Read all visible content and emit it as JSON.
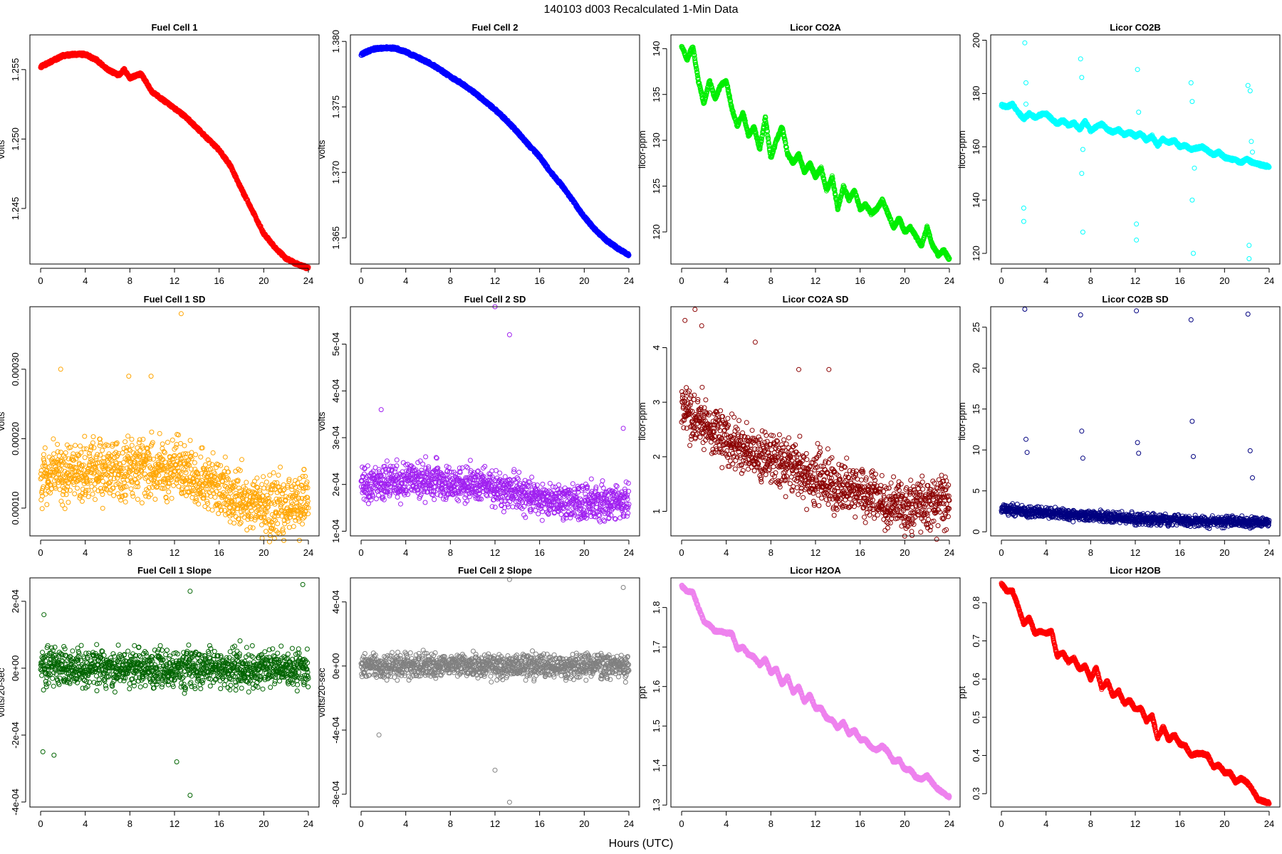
{
  "figure": {
    "title": "140103   d003   Recalculated 1-Min Data",
    "xlabel": "Hours (UTC)"
  },
  "chart_data": [
    {
      "type": "scatter",
      "title": "Fuel Cell 1",
      "ylabel": "volts",
      "color": "#ff0000",
      "xlim": [
        0,
        24
      ],
      "ylim": [
        1.241,
        1.2575
      ],
      "xticks": [
        0,
        4,
        8,
        12,
        16,
        20,
        24
      ],
      "xtick_labels": [
        "0",
        "4",
        "8",
        "12",
        "16",
        "20",
        "24"
      ],
      "yticks": [
        1.245,
        1.25,
        1.255
      ],
      "ytick_labels": [
        "1.245",
        "1.250",
        "1.255"
      ],
      "x": [
        0,
        1,
        2,
        3,
        4,
        5,
        6,
        7,
        7.5,
        8,
        9,
        10,
        11,
        12,
        13,
        14,
        15,
        16,
        17,
        18,
        19,
        20,
        21,
        22,
        23,
        24
      ],
      "y": [
        1.2552,
        1.2556,
        1.256,
        1.2561,
        1.2561,
        1.2557,
        1.255,
        1.2546,
        1.255,
        1.2544,
        1.2547,
        1.2534,
        1.2528,
        1.2522,
        1.2516,
        1.2508,
        1.25,
        1.2492,
        1.2481,
        1.2464,
        1.2448,
        1.2432,
        1.2422,
        1.2414,
        1.241,
        1.2407
      ]
    },
    {
      "type": "scatter",
      "title": "Fuel Cell 2",
      "ylabel": "volts",
      "color": "#0000ff",
      "xlim": [
        0,
        24
      ],
      "ylim": [
        1.363,
        1.3805
      ],
      "xticks": [
        0,
        4,
        8,
        12,
        16,
        20,
        24
      ],
      "xtick_labels": [
        "0",
        "4",
        "8",
        "12",
        "16",
        "20",
        "24"
      ],
      "yticks": [
        1.365,
        1.37,
        1.375,
        1.38
      ],
      "ytick_labels": [
        "1.365",
        "1.370",
        "1.375",
        "1.380"
      ],
      "x": [
        0,
        1,
        2,
        3,
        4,
        5,
        6,
        7,
        8,
        9,
        10,
        11,
        12,
        13,
        14,
        15,
        16,
        17,
        18,
        19,
        20,
        21,
        22,
        23,
        24
      ],
      "y": [
        1.379,
        1.3794,
        1.3795,
        1.3795,
        1.3792,
        1.3788,
        1.3784,
        1.3779,
        1.3773,
        1.3768,
        1.3762,
        1.3755,
        1.3748,
        1.374,
        1.3731,
        1.3721,
        1.3712,
        1.37,
        1.369,
        1.3678,
        1.3666,
        1.3656,
        1.3648,
        1.3642,
        1.3637
      ]
    },
    {
      "type": "scatter",
      "title": "Licor CO2A",
      "ylabel": "licor-ppm",
      "color": "#00ee00",
      "xlim": [
        0,
        24
      ],
      "ylim": [
        116.5,
        141.5
      ],
      "xticks": [
        0,
        4,
        8,
        12,
        16,
        20,
        24
      ],
      "xtick_labels": [
        "0",
        "4",
        "8",
        "12",
        "16",
        "20",
        "24"
      ],
      "yticks": [
        120,
        125,
        130,
        135,
        140
      ],
      "ytick_labels": [
        "120",
        "125",
        "130",
        "135",
        "140"
      ],
      "x": [
        0,
        0.5,
        1,
        1.5,
        2,
        2.5,
        3,
        3.5,
        4,
        4.5,
        5,
        5.5,
        6,
        6.5,
        7,
        7.5,
        8,
        8.5,
        9,
        9.5,
        10,
        10.5,
        11,
        11.5,
        12,
        12.5,
        13,
        13.5,
        14,
        14.5,
        15,
        15.5,
        16,
        16.5,
        17,
        17.5,
        18,
        18.5,
        19,
        19.5,
        20,
        20.5,
        21,
        21.5,
        22,
        22.5,
        23,
        23.5,
        24
      ],
      "y": [
        140.3,
        138.8,
        140.3,
        136.5,
        134.0,
        136.5,
        134.5,
        136.0,
        136.5,
        133.5,
        131.5,
        133.0,
        130.5,
        131.5,
        129.0,
        132.5,
        128.0,
        130.0,
        131.5,
        128.5,
        127.5,
        128.5,
        126.5,
        127.5,
        126.0,
        127.0,
        124.5,
        126.0,
        122.5,
        125.0,
        123.5,
        124.5,
        122.5,
        123.0,
        122.0,
        122.5,
        123.5,
        122.0,
        120.5,
        121.5,
        120.0,
        120.5,
        119.5,
        118.5,
        120.5,
        118.5,
        117.5,
        118.0,
        117.0
      ]
    },
    {
      "type": "scatter",
      "title": "Licor CO2B",
      "ylabel": "licor-ppm",
      "color": "#00ffff",
      "xlim": [
        0,
        24
      ],
      "ylim": [
        116,
        202
      ],
      "xticks": [
        0,
        4,
        8,
        12,
        16,
        20,
        24
      ],
      "xtick_labels": [
        "0",
        "4",
        "8",
        "12",
        "16",
        "20",
        "24"
      ],
      "yticks": [
        120,
        140,
        160,
        180,
        200
      ],
      "ytick_labels": [
        "120",
        "140",
        "160",
        "180",
        "200"
      ],
      "x": [
        0,
        0.5,
        1,
        1.5,
        2,
        2.5,
        3,
        3.5,
        4,
        4.5,
        5,
        5.5,
        6,
        6.5,
        7,
        7.5,
        8,
        8.5,
        9,
        9.5,
        10,
        10.5,
        11,
        11.5,
        12,
        12.5,
        13,
        13.5,
        14,
        14.5,
        15,
        15.5,
        16,
        16.5,
        17,
        17.5,
        18,
        18.5,
        19,
        19.5,
        20,
        20.5,
        21,
        21.5,
        22,
        22.5,
        23,
        23.5,
        24
      ],
      "y": [
        175.5,
        175.0,
        176.0,
        173.0,
        170.5,
        172.5,
        171.0,
        172.0,
        172.5,
        170.5,
        168.5,
        170.0,
        168.0,
        169.0,
        166.5,
        169.5,
        166.0,
        167.5,
        168.5,
        166.5,
        165.5,
        166.5,
        164.5,
        165.5,
        164.0,
        165.0,
        162.5,
        164.0,
        160.5,
        163.0,
        161.5,
        162.5,
        160.0,
        160.5,
        159.0,
        159.5,
        160.0,
        158.5,
        157.0,
        158.0,
        156.0,
        155.5,
        155.0,
        154.0,
        155.5,
        154.0,
        153.5,
        153.0,
        152.5
      ],
      "outliers_x": [
        2.0,
        2.0,
        2.1,
        2.2,
        2.2,
        7.1,
        7.2,
        7.2,
        7.3,
        7.3,
        12.1,
        12.1,
        12.2,
        12.3,
        17.0,
        17.1,
        17.1,
        17.2,
        17.3,
        22.1,
        22.2,
        22.2,
        22.3,
        22.4,
        22.5
      ],
      "outliers_y": [
        137,
        132,
        199,
        184,
        176,
        193,
        186,
        150,
        159,
        128,
        131,
        125,
        189,
        173,
        184,
        177,
        140,
        120,
        152,
        183,
        123,
        118,
        181,
        162,
        158
      ]
    },
    {
      "type": "scatter",
      "title": "Fuel Cell 1 SD",
      "ylabel": "volts",
      "color": "#ffa500",
      "xlim": [
        0,
        24
      ],
      "ylim": [
        6e-05,
        0.00039
      ],
      "xticks": [
        0,
        4,
        8,
        12,
        16,
        20,
        24
      ],
      "xtick_labels": [
        "0",
        "4",
        "8",
        "12",
        "16",
        "20",
        "24"
      ],
      "yticks": [
        0.0001,
        0.0002,
        0.0003
      ],
      "ytick_labels": [
        "0.00010",
        "0.00020",
        "0.00030"
      ],
      "x": [
        0,
        2,
        4,
        6,
        8,
        10,
        12,
        14,
        16,
        18,
        20,
        22,
        24
      ],
      "y": [
        0.000145,
        0.00015,
        0.00015,
        0.000155,
        0.00016,
        0.00016,
        0.000155,
        0.00014,
        0.00013,
        0.00011,
        0.000105,
        0.000105,
        0.00011
      ],
      "spread": 4.5e-05,
      "outliers_x": [
        1.8,
        7.9,
        9.9,
        12.6
      ],
      "outliers_y": [
        0.0003,
        0.00029,
        0.00029,
        0.00038
      ]
    },
    {
      "type": "scatter",
      "title": "Fuel Cell 2 SD",
      "ylabel": "volts",
      "color": "#a020f0",
      "xlim": [
        0,
        24
      ],
      "ylim": [
        9e-05,
        0.00058
      ],
      "xticks": [
        0,
        4,
        8,
        12,
        16,
        20,
        24
      ],
      "xtick_labels": [
        "0",
        "4",
        "8",
        "12",
        "16",
        "20",
        "24"
      ],
      "yticks": [
        0.0001,
        0.0002,
        0.0003,
        0.0004,
        0.0005
      ],
      "ytick_labels": [
        "1e-04",
        "2e-04",
        "3e-04",
        "4e-04",
        "5e-04"
      ],
      "x": [
        0,
        2,
        4,
        6,
        8,
        10,
        12,
        14,
        16,
        18,
        20,
        22,
        24
      ],
      "y": [
        0.0002,
        0.0002,
        0.00021,
        0.00021,
        0.0002,
        0.0002,
        0.00019,
        0.00018,
        0.00017,
        0.00016,
        0.00016,
        0.00016,
        0.00016
      ],
      "spread": 4e-05,
      "outliers_x": [
        12.0,
        13.3,
        1.8,
        23.5
      ],
      "outliers_y": [
        0.00058,
        0.00052,
        0.00036,
        0.00032
      ]
    },
    {
      "type": "scatter",
      "title": "Licor CO2A SD",
      "ylabel": "licor-ppm",
      "color": "#8b0000",
      "xlim": [
        0,
        24
      ],
      "ylim": [
        0.55,
        4.75
      ],
      "xticks": [
        0,
        4,
        8,
        12,
        16,
        20,
        24
      ],
      "xtick_labels": [
        "0",
        "4",
        "8",
        "12",
        "16",
        "20",
        "24"
      ],
      "yticks": [
        1,
        2,
        3,
        4
      ],
      "ytick_labels": [
        "1",
        "2",
        "3",
        "4"
      ],
      "x": [
        0,
        2,
        4,
        6,
        8,
        10,
        12,
        14,
        16,
        18,
        20,
        22,
        24
      ],
      "y": [
        2.9,
        2.6,
        2.3,
        2.1,
        1.95,
        1.8,
        1.6,
        1.45,
        1.35,
        1.2,
        1.1,
        1.15,
        1.15
      ],
      "spread": 0.5,
      "outliers_x": [
        0.3,
        1.2,
        1.8,
        6.6,
        10.5,
        13.2
      ],
      "outliers_y": [
        4.5,
        4.7,
        4.4,
        4.1,
        3.6,
        3.6
      ]
    },
    {
      "type": "scatter",
      "title": "Licor CO2B SD",
      "ylabel": "licor-ppm",
      "color": "#000080",
      "xlim": [
        0,
        24
      ],
      "ylim": [
        -0.5,
        27.5
      ],
      "xticks": [
        0,
        4,
        8,
        12,
        16,
        20,
        24
      ],
      "xtick_labels": [
        "0",
        "4",
        "8",
        "12",
        "16",
        "20",
        "24"
      ],
      "yticks": [
        0,
        5,
        10,
        15,
        20,
        25
      ],
      "ytick_labels": [
        "0",
        "5",
        "10",
        "15",
        "20",
        "25"
      ],
      "x": [
        0,
        2,
        4,
        6,
        8,
        10,
        12,
        14,
        16,
        18,
        20,
        22,
        24
      ],
      "y": [
        2.8,
        2.5,
        2.3,
        2.1,
        1.9,
        1.8,
        1.6,
        1.5,
        1.4,
        1.3,
        1.2,
        1.2,
        1.2
      ],
      "spread": 0.7,
      "outliers_x": [
        2.1,
        2.2,
        2.3,
        7.1,
        7.2,
        7.3,
        12.1,
        12.2,
        12.3,
        17.0,
        17.1,
        17.2,
        22.1,
        22.3,
        22.5
      ],
      "outliers_y": [
        27.2,
        11.3,
        9.7,
        26.5,
        12.3,
        9.0,
        27.0,
        10.9,
        9.6,
        25.9,
        13.5,
        9.2,
        26.6,
        9.9,
        6.6
      ]
    },
    {
      "type": "scatter",
      "title": "Fuel Cell 1 Slope",
      "ylabel": "volts/20-sec",
      "color": "#006400",
      "xlim": [
        0,
        24
      ],
      "ylim": [
        -0.000415,
        0.00027
      ],
      "xticks": [
        0,
        4,
        8,
        12,
        16,
        20,
        24
      ],
      "xtick_labels": [
        "0",
        "4",
        "8",
        "12",
        "16",
        "20",
        "24"
      ],
      "yticks": [
        -0.0004,
        -0.0002,
        0,
        0.0002
      ],
      "ytick_labels": [
        "-4e-04",
        "-2e-04",
        "0e+00",
        "2e-04"
      ],
      "x": [
        0,
        24
      ],
      "y": [
        0,
        0
      ],
      "spread": 6e-05,
      "outliers_x": [
        12.2,
        13.4,
        23.5,
        13.4,
        0.2,
        0.3,
        1.2
      ],
      "outliers_y": [
        -0.00028,
        -0.00038,
        0.00025,
        0.00023,
        -0.00025,
        0.00016,
        -0.00026
      ]
    },
    {
      "type": "scatter",
      "title": "Fuel Cell 2 Slope",
      "ylabel": "volts/20-sec",
      "color": "#808080",
      "xlim": [
        0,
        24
      ],
      "ylim": [
        -0.00088,
        0.00055
      ],
      "xticks": [
        0,
        4,
        8,
        12,
        16,
        20,
        24
      ],
      "xtick_labels": [
        "0",
        "4",
        "8",
        "12",
        "16",
        "20",
        "24"
      ],
      "yticks": [
        -0.0008,
        -0.0004,
        0,
        0.0004
      ],
      "ytick_labels": [
        "-8e-04",
        "-4e-04",
        "0e+00",
        "4e-04"
      ],
      "x": [
        0,
        24
      ],
      "y": [
        0,
        0
      ],
      "spread": 8e-05,
      "outliers_x": [
        12.0,
        13.3,
        13.3,
        23.5,
        1.6
      ],
      "outliers_y": [
        -0.00065,
        -0.00085,
        0.00054,
        0.00049,
        -0.00043
      ]
    },
    {
      "type": "scatter",
      "title": "Licor H2OA",
      "ylabel": "ppt",
      "color": "#ee82ee",
      "xlim": [
        0,
        24
      ],
      "ylim": [
        1.295,
        1.875
      ],
      "xticks": [
        0,
        4,
        8,
        12,
        16,
        20,
        24
      ],
      "xtick_labels": [
        "0",
        "4",
        "8",
        "12",
        "16",
        "20",
        "24"
      ],
      "yticks": [
        1.3,
        1.4,
        1.5,
        1.6,
        1.7,
        1.8
      ],
      "ytick_labels": [
        "1.3",
        "1.4",
        "1.5",
        "1.6",
        "1.7",
        "1.8"
      ],
      "x": [
        0,
        0.5,
        1,
        1.5,
        2,
        2.5,
        3,
        3.5,
        4,
        4.5,
        5,
        5.5,
        6,
        6.5,
        7,
        7.5,
        8,
        8.5,
        9,
        9.5,
        10,
        10.5,
        11,
        11.5,
        12,
        12.5,
        13,
        13.5,
        14,
        14.5,
        15,
        15.5,
        16,
        16.5,
        17,
        17.5,
        18,
        18.5,
        19,
        19.5,
        20,
        20.5,
        21,
        21.5,
        22,
        22.5,
        23,
        23.5,
        24
      ],
      "y": [
        1.855,
        1.84,
        1.84,
        1.8,
        1.765,
        1.755,
        1.74,
        1.74,
        1.735,
        1.735,
        1.695,
        1.7,
        1.68,
        1.675,
        1.655,
        1.67,
        1.635,
        1.645,
        1.605,
        1.625,
        1.585,
        1.6,
        1.56,
        1.58,
        1.545,
        1.545,
        1.52,
        1.515,
        1.495,
        1.51,
        1.48,
        1.49,
        1.465,
        1.465,
        1.445,
        1.44,
        1.45,
        1.435,
        1.41,
        1.415,
        1.39,
        1.39,
        1.37,
        1.365,
        1.375,
        1.355,
        1.34,
        1.33,
        1.32
      ]
    },
    {
      "type": "scatter",
      "title": "Licor H2OB",
      "ylabel": "ppt",
      "color": "#ff0000",
      "xlim": [
        0,
        24
      ],
      "ylim": [
        0.265,
        0.865
      ],
      "xticks": [
        0,
        4,
        8,
        12,
        16,
        20,
        24
      ],
      "xtick_labels": [
        "0",
        "4",
        "8",
        "12",
        "16",
        "20",
        "24"
      ],
      "yticks": [
        0.3,
        0.4,
        0.5,
        0.6,
        0.7,
        0.8
      ],
      "ytick_labels": [
        "0.3",
        "0.4",
        "0.5",
        "0.6",
        "0.7",
        "0.8"
      ],
      "x": [
        0,
        0.5,
        1,
        1.5,
        2,
        2.5,
        3,
        3.5,
        4,
        4.5,
        5,
        5.5,
        6,
        6.5,
        7,
        7.5,
        8,
        8.5,
        9,
        9.5,
        10,
        10.5,
        11,
        11.5,
        12,
        12.5,
        13,
        13.5,
        14,
        14.5,
        15,
        15.5,
        16,
        16.5,
        17,
        17.5,
        18,
        18.5,
        19,
        19.5,
        20,
        20.5,
        21,
        21.5,
        22,
        22.5,
        23,
        23.5,
        24
      ],
      "y": [
        0.85,
        0.83,
        0.83,
        0.79,
        0.745,
        0.76,
        0.72,
        0.725,
        0.72,
        0.725,
        0.66,
        0.67,
        0.645,
        0.655,
        0.625,
        0.635,
        0.6,
        0.63,
        0.575,
        0.595,
        0.555,
        0.57,
        0.535,
        0.545,
        0.52,
        0.525,
        0.49,
        0.505,
        0.445,
        0.475,
        0.44,
        0.455,
        0.43,
        0.425,
        0.4,
        0.405,
        0.405,
        0.4,
        0.37,
        0.375,
        0.355,
        0.355,
        0.33,
        0.34,
        0.33,
        0.31,
        0.285,
        0.28,
        0.275
      ]
    }
  ]
}
